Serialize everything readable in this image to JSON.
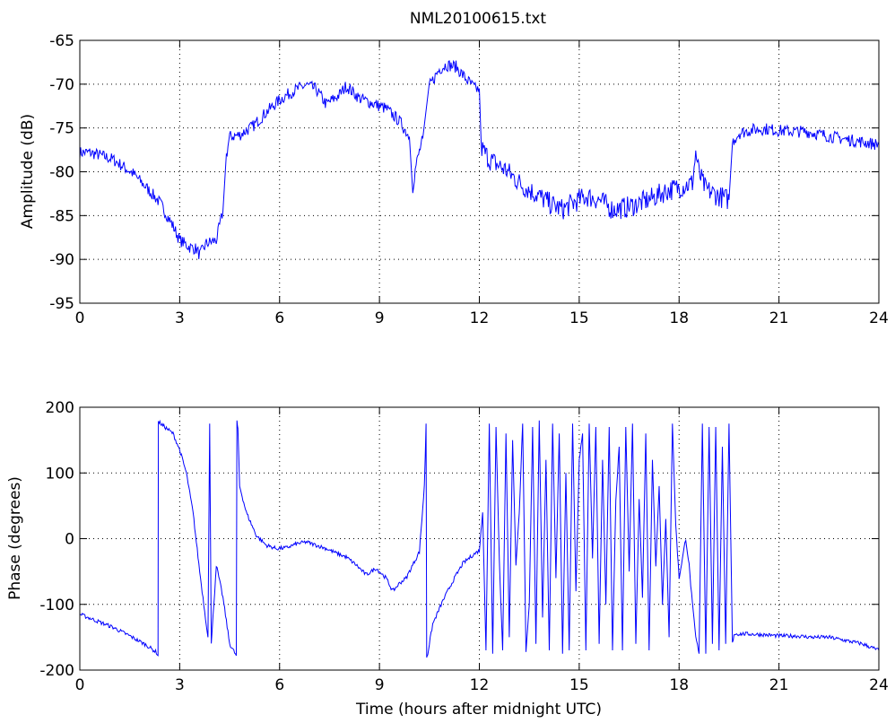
{
  "figure": {
    "title": "NML20100615.txt"
  },
  "chart_data": [
    {
      "type": "line",
      "title": "NML20100615.txt",
      "xlabel": "",
      "ylabel": "Amplitude (dB)",
      "xlim": [
        0,
        24
      ],
      "ylim": [
        -95,
        -65
      ],
      "xticks": [
        0,
        3,
        6,
        9,
        12,
        15,
        18,
        21,
        24
      ],
      "yticks": [
        -95,
        -90,
        -85,
        -80,
        -75,
        -70,
        -65
      ],
      "grid": true,
      "line_color": "#0000ff",
      "series": [
        {
          "x": [
            0,
            0.3,
            0.6,
            1.0,
            1.3,
            1.6,
            2.0,
            2.4,
            2.8,
            3.0,
            3.3,
            3.5,
            3.6,
            3.8,
            4.1,
            4.3,
            4.4,
            4.5,
            4.8,
            5.2,
            5.6,
            6.0,
            6.4,
            6.8,
            7.1,
            7.4,
            7.8,
            8.0,
            8.4,
            8.8,
            9.2,
            9.6,
            9.9,
            10.0,
            10.1,
            10.3,
            10.5,
            10.8,
            11.0,
            11.3,
            11.6,
            11.9,
            12.0,
            12.05,
            12.3,
            12.8,
            13.3,
            13.8,
            14.2,
            14.5,
            14.8,
            15.2,
            15.6,
            16.0,
            16.4,
            16.8,
            17.2,
            17.6,
            18.0,
            18.4,
            18.5,
            18.6,
            18.8,
            19.2,
            19.5,
            19.6,
            19.8,
            20.2,
            20.6,
            21.0,
            21.4,
            21.8,
            22.2,
            22.6,
            23.0,
            23.5,
            24.0
          ],
          "y": [
            -77.8,
            -77.8,
            -78.1,
            -78.6,
            -79.4,
            -80.2,
            -81.8,
            -83.5,
            -86.2,
            -87.8,
            -88.6,
            -88.8,
            -89.5,
            -88.2,
            -87.8,
            -84.5,
            -78.2,
            -76.0,
            -75.8,
            -74.8,
            -73.2,
            -71.8,
            -70.8,
            -70.1,
            -70.6,
            -72.3,
            -71.2,
            -70.2,
            -71.6,
            -72.2,
            -72.8,
            -74.2,
            -76.0,
            -81.8,
            -79.2,
            -76.2,
            -70.2,
            -68.3,
            -67.8,
            -68.0,
            -69.4,
            -70.6,
            -70.5,
            -77.2,
            -78.6,
            -79.8,
            -81.6,
            -82.8,
            -83.8,
            -84.3,
            -83.6,
            -82.8,
            -83.2,
            -84.3,
            -84.1,
            -83.6,
            -83.0,
            -82.2,
            -81.8,
            -81.3,
            -77.8,
            -80.2,
            -82.0,
            -82.8,
            -83.2,
            -76.6,
            -75.6,
            -75.2,
            -75.1,
            -75.3,
            -75.4,
            -75.4,
            -75.7,
            -76.0,
            -76.3,
            -76.6,
            -76.9
          ]
        }
      ]
    },
    {
      "type": "line",
      "title": "",
      "xlabel": "Time (hours after midnight UTC)",
      "ylabel": "Phase (degrees)",
      "xlim": [
        0,
        24
      ],
      "ylim": [
        -200,
        200
      ],
      "xticks": [
        0,
        3,
        6,
        9,
        12,
        15,
        18,
        21,
        24
      ],
      "yticks": [
        -200,
        -100,
        0,
        100,
        200
      ],
      "grid": true,
      "line_color": "#0000ff",
      "series": [
        {
          "x": [
            0,
            0.5,
            1.0,
            1.5,
            2.0,
            2.3,
            2.35,
            2.36,
            2.5,
            2.8,
            3.0,
            3.2,
            3.4,
            3.6,
            3.85,
            3.9,
            3.95,
            4.1,
            4.3,
            4.5,
            4.7,
            4.72,
            4.75,
            4.8,
            5.0,
            5.3,
            5.6,
            5.9,
            6.2,
            6.5,
            6.8,
            7.1,
            7.4,
            7.7,
            8.0,
            8.3,
            8.6,
            8.9,
            9.2,
            9.4,
            9.6,
            9.8,
            10.0,
            10.2,
            10.35,
            10.4,
            10.42,
            10.45,
            10.6,
            10.9,
            11.2,
            11.5,
            11.8,
            12.0,
            12.1,
            12.2,
            12.3,
            12.4,
            12.5,
            12.6,
            12.7,
            12.8,
            12.9,
            13.0,
            13.1,
            13.2,
            13.3,
            13.4,
            13.5,
            13.6,
            13.7,
            13.8,
            13.9,
            14.0,
            14.1,
            14.2,
            14.3,
            14.4,
            14.5,
            14.6,
            14.7,
            14.8,
            14.9,
            15.0,
            15.1,
            15.2,
            15.3,
            15.4,
            15.5,
            15.6,
            15.7,
            15.8,
            15.9,
            16.0,
            16.1,
            16.2,
            16.3,
            16.4,
            16.5,
            16.6,
            16.7,
            16.8,
            16.9,
            17.0,
            17.1,
            17.2,
            17.3,
            17.4,
            17.5,
            17.6,
            17.7,
            17.8,
            17.9,
            18.0,
            18.1,
            18.2,
            18.3,
            18.4,
            18.5,
            18.6,
            18.7,
            18.8,
            18.9,
            19.0,
            19.1,
            19.2,
            19.3,
            19.4,
            19.5,
            19.6,
            19.65,
            20.0,
            20.5,
            21.0,
            21.5,
            22.0,
            22.5,
            23.0,
            23.5,
            24.0
          ],
          "y": [
            -115,
            -125,
            -135,
            -148,
            -162,
            -173,
            -178,
            178,
            172,
            160,
            135,
            100,
            40,
            -50,
            -150,
            175,
            -160,
            -40,
            -90,
            -160,
            -178,
            178,
            165,
            80,
            40,
            5,
            -10,
            -15,
            -14,
            -8,
            -5,
            -10,
            -15,
            -22,
            -28,
            -40,
            -55,
            -45,
            -60,
            -80,
            -68,
            -60,
            -40,
            -20,
            80,
            175,
            -180,
            -175,
            -130,
            -95,
            -65,
            -38,
            -25,
            -18,
            40,
            -170,
            175,
            -175,
            170,
            -30,
            -170,
            160,
            -150,
            150,
            -40,
            40,
            175,
            -170,
            -100,
            170,
            -160,
            180,
            -120,
            120,
            -170,
            175,
            -60,
            160,
            -175,
            100,
            -170,
            175,
            -80,
            120,
            160,
            -170,
            175,
            -30,
            170,
            -160,
            120,
            -100,
            170,
            -170,
            60,
            140,
            -170,
            170,
            -50,
            175,
            -160,
            60,
            -90,
            160,
            -170,
            120,
            -40,
            80,
            -100,
            30,
            -150,
            175,
            20,
            -60,
            -30,
            0,
            -40,
            -100,
            -150,
            -175,
            175,
            -175,
            170,
            -160,
            170,
            -170,
            140,
            -160,
            175,
            -160,
            -145,
            -145,
            -146,
            -148,
            -148,
            -150,
            -150,
            -155,
            -160,
            -170
          ]
        }
      ]
    }
  ]
}
